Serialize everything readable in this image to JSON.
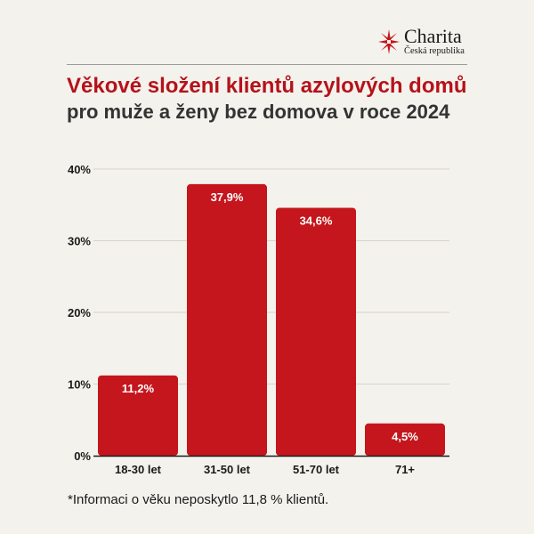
{
  "brand": {
    "name": "Charita",
    "subtitle": "Česká republika",
    "icon": "charita-cross-icon",
    "color": "#c4161c"
  },
  "title": "Věkové složení klientů azylových domů",
  "subtitle": "pro muže a ženy bez domova v roce 2024",
  "footnote": "*Informaci o věku neposkytlo 11,8 % klientů.",
  "chart_data": {
    "type": "bar",
    "categories": [
      "18-30 let",
      "31-50 let",
      "51-70 let",
      "71+"
    ],
    "values": [
      11.2,
      37.9,
      34.6,
      4.5
    ],
    "value_labels": [
      "11,2%",
      "37,9%",
      "34,6%",
      "4,5%"
    ],
    "ylim": [
      0,
      40
    ],
    "yticks": [
      0,
      10,
      20,
      30,
      40
    ],
    "ytick_labels": [
      "0%",
      "10%",
      "20%",
      "30%",
      "40%"
    ],
    "grid": true,
    "bar_color": "#c4161c",
    "grid_color": "#d6d3cc",
    "axis_color": "#1a1a1a"
  }
}
